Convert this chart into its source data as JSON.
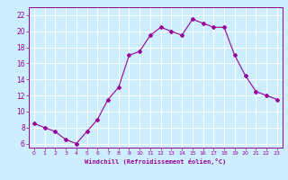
{
  "x": [
    0,
    1,
    2,
    3,
    4,
    5,
    6,
    7,
    8,
    9,
    10,
    11,
    12,
    13,
    14,
    15,
    16,
    17,
    18,
    19,
    20,
    21,
    22,
    23
  ],
  "y": [
    8.5,
    8.0,
    7.5,
    6.5,
    6.0,
    7.5,
    9.0,
    11.5,
    13.0,
    17.0,
    17.5,
    19.5,
    20.5,
    20.0,
    19.5,
    21.5,
    21.0,
    20.5,
    20.5,
    17.0,
    14.5,
    12.5,
    12.0,
    11.5
  ],
  "line_color": "#990099",
  "marker": "D",
  "marker_size": 2,
  "xlabel": "Windchill (Refroidissement éolien,°C)",
  "ylim": [
    5.5,
    23
  ],
  "xlim": [
    -0.5,
    23.5
  ],
  "yticks": [
    6,
    8,
    10,
    12,
    14,
    16,
    18,
    20,
    22
  ],
  "xticks": [
    0,
    1,
    2,
    3,
    4,
    5,
    6,
    7,
    8,
    9,
    10,
    11,
    12,
    13,
    14,
    15,
    16,
    17,
    18,
    19,
    20,
    21,
    22,
    23
  ],
  "bg_color": "#cceeff",
  "grid_color": "#ffffff",
  "tick_color": "#990099",
  "label_color": "#990099"
}
